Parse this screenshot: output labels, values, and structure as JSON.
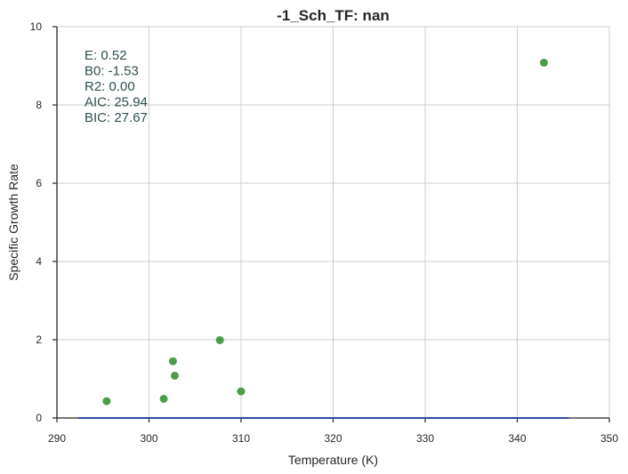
{
  "chart_data": {
    "type": "scatter",
    "title": "-1_Sch_TF: nan",
    "xlabel": "Temperature (K)",
    "ylabel": "Specific Growth Rate",
    "xlim": [
      290,
      350
    ],
    "ylim": [
      0,
      10
    ],
    "xticks": [
      290,
      300,
      310,
      320,
      330,
      340,
      350
    ],
    "yticks": [
      0,
      2,
      4,
      6,
      8,
      10
    ],
    "grid": true,
    "points": [
      {
        "x": 295.4,
        "y": 0.43
      },
      {
        "x": 301.6,
        "y": 0.49
      },
      {
        "x": 302.6,
        "y": 1.45
      },
      {
        "x": 302.8,
        "y": 1.08
      },
      {
        "x": 307.7,
        "y": 1.99
      },
      {
        "x": 310.0,
        "y": 0.68
      },
      {
        "x": 342.9,
        "y": 9.08
      }
    ],
    "fit_line": {
      "x": [
        292.3,
        345.6
      ],
      "y": [
        0.0,
        0.0
      ]
    },
    "annotation": [
      "E:  0.52",
      "B0:  -1.53",
      "R2:  0.00",
      "AIC: 25.94",
      "BIC: 27.67"
    ],
    "colors": {
      "points": "#4a9e4a",
      "fit_line": "#2b4d9b",
      "grid": "#cccccc",
      "axis": "#262626",
      "annotation": "#2f4f4f"
    }
  }
}
